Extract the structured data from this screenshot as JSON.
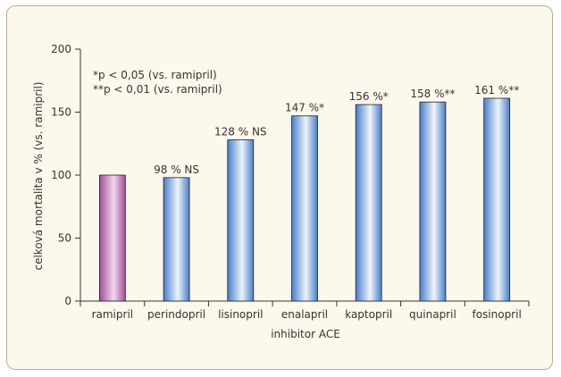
{
  "colors": {
    "reference_bar_dark": "#a14e98",
    "reference_bar_light": "#f4d8f1",
    "bar_dark": "#4a7ec6",
    "bar_light": "#eef4fd",
    "bar_stroke": "#222222",
    "frame_bg": "#fdf8ec",
    "frame_border": "#b8ae95"
  },
  "chart_data": {
    "type": "bar",
    "xlabel": "inhibitor ACE",
    "ylabel": "celková mortalita v % (vs. ramipril)",
    "ylim": [
      0,
      200
    ],
    "yticks": [
      0,
      50,
      100,
      150,
      200
    ],
    "grid": false,
    "categories": [
      "ramipril",
      "perindopril",
      "lisinopril",
      "enalapril",
      "kaptopril",
      "quinapril",
      "fosinopril"
    ],
    "values": [
      100,
      98,
      128,
      147,
      156,
      158,
      161
    ],
    "data_labels": [
      "",
      "98 % NS",
      "128 % NS",
      "147 %*",
      "156 %*",
      "158 %**",
      "161 %**"
    ],
    "annotations": [
      "*p < 0,05 (vs. ramipril)",
      "**p < 0,01 (vs. ramipril)"
    ]
  }
}
